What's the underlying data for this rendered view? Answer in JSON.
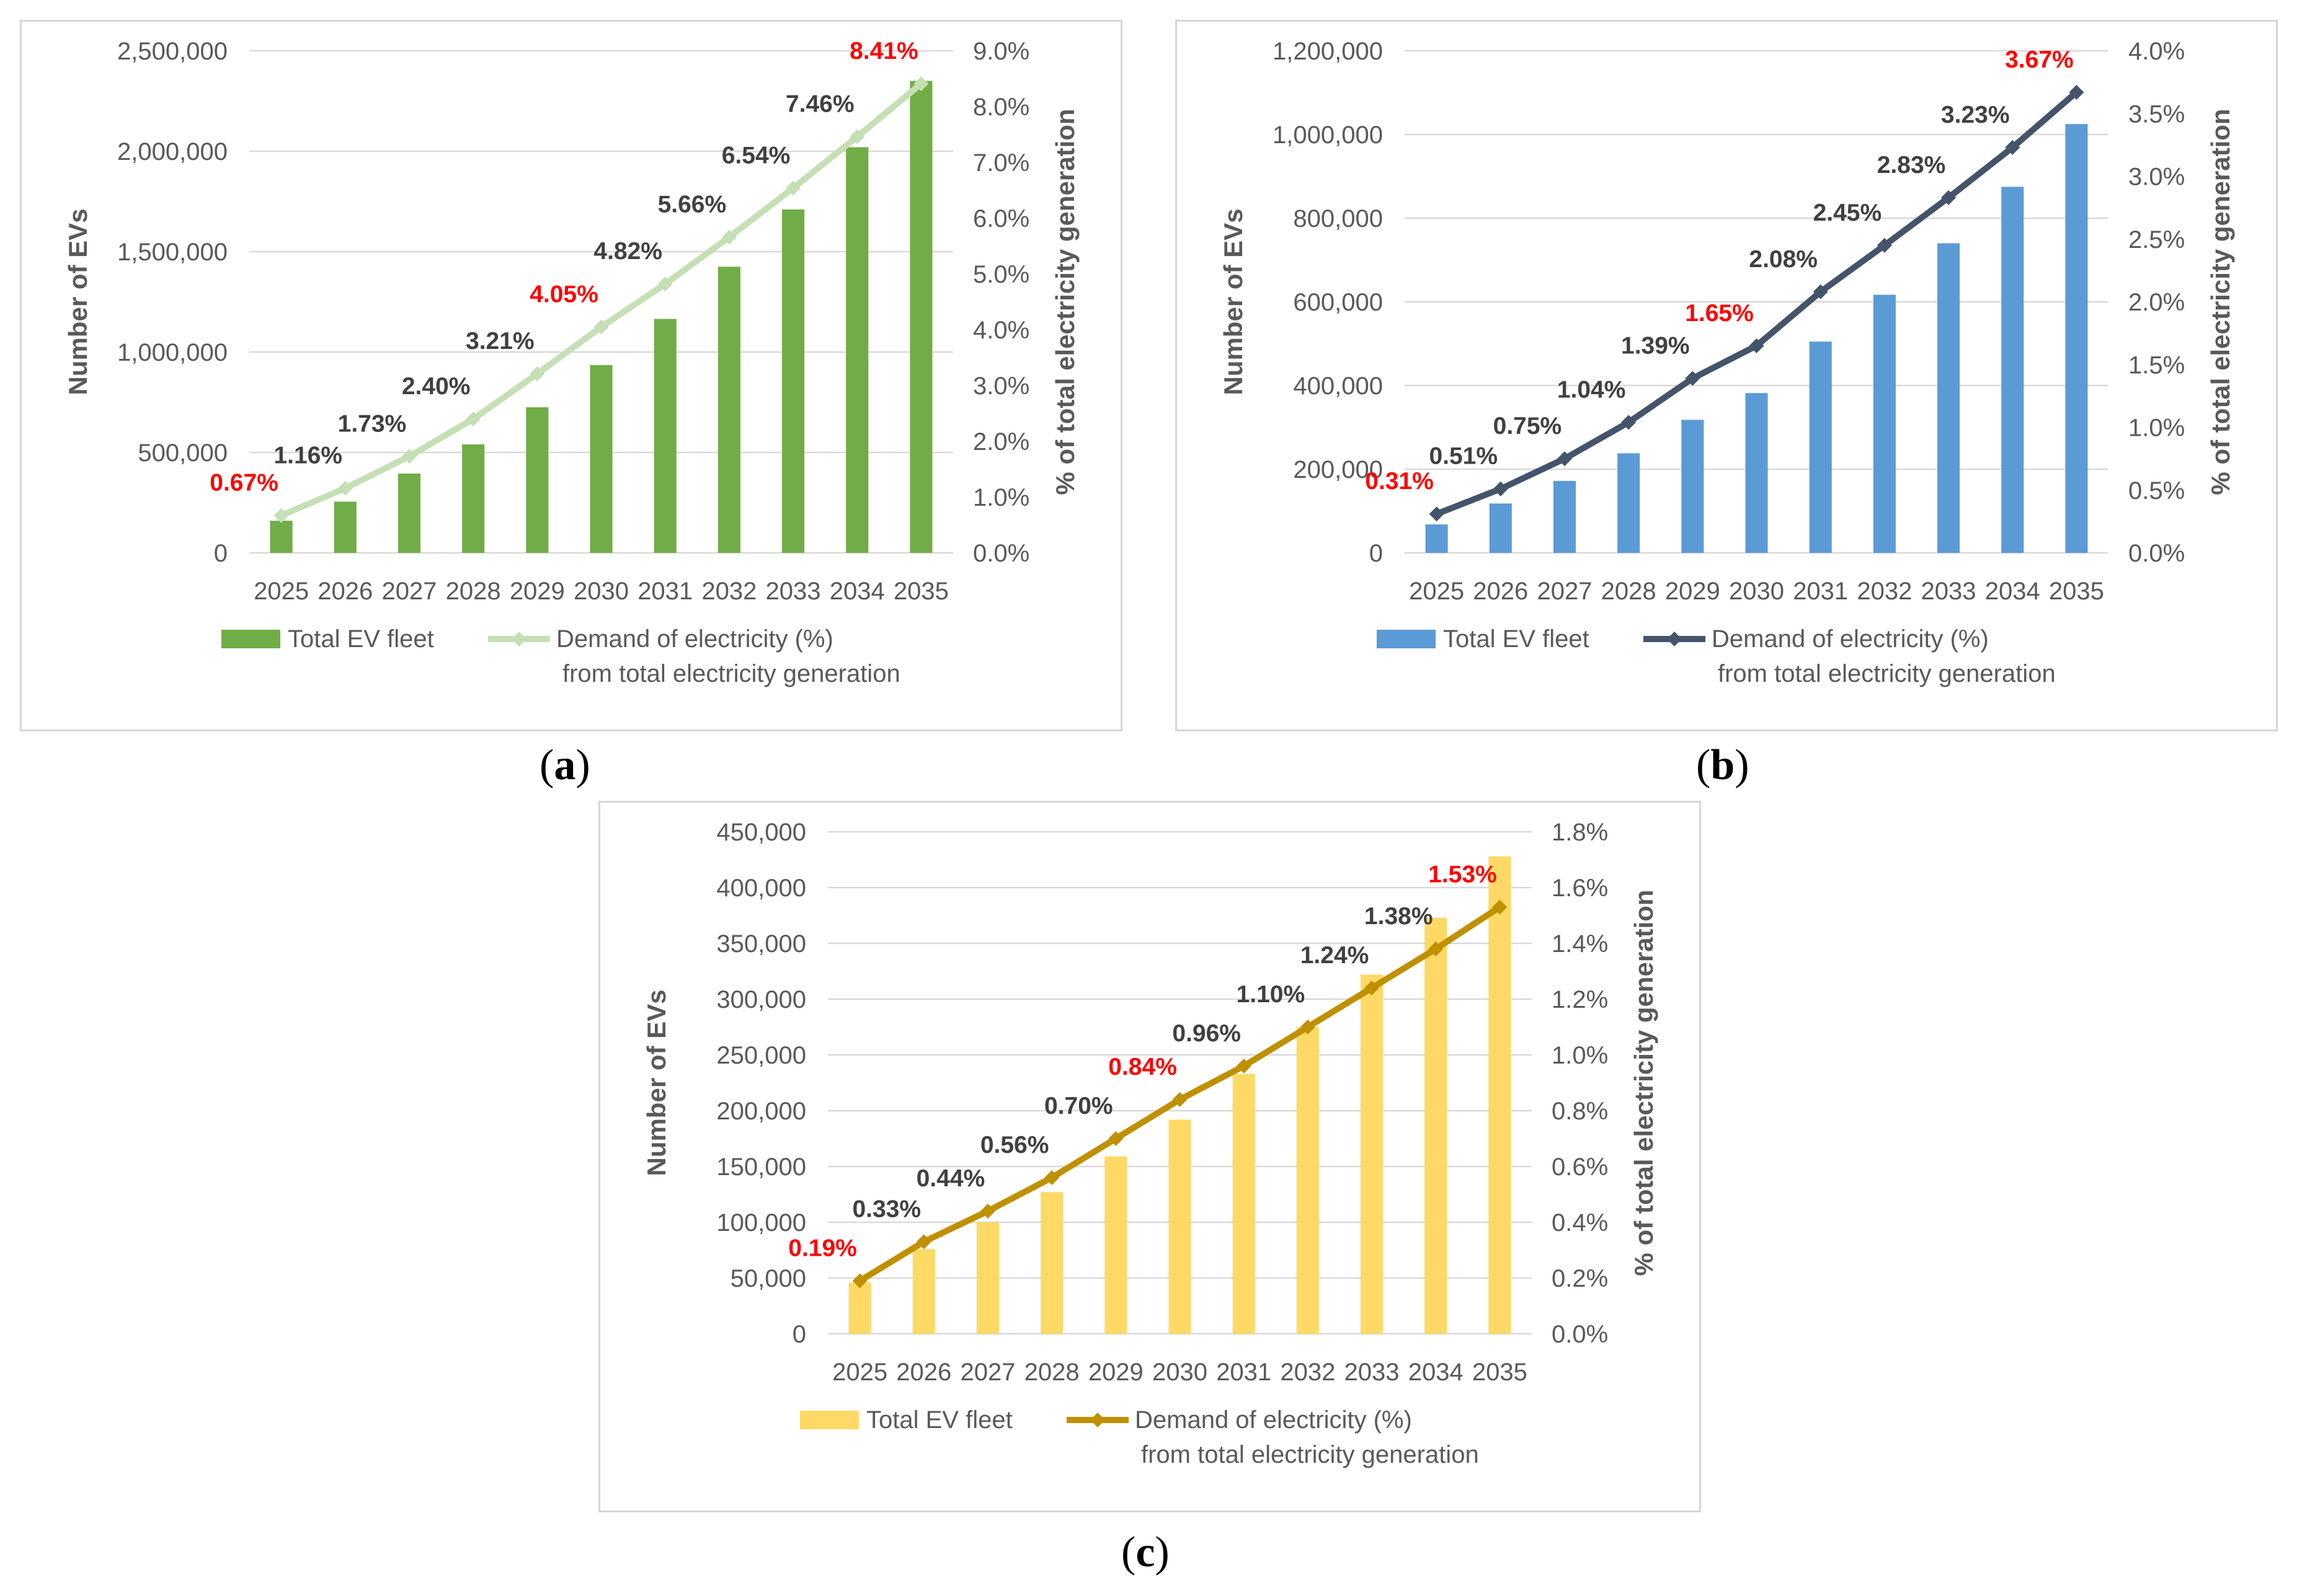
{
  "panels": [
    {
      "id": "a",
      "label": "a",
      "chart_data": {
        "type": "bar+line",
        "categories": [
          "2025",
          "2026",
          "2027",
          "2028",
          "2029",
          "2030",
          "2031",
          "2032",
          "2033",
          "2034",
          "2035"
        ],
        "series": [
          {
            "name": "Total EV fleet",
            "type": "bar",
            "axis": "left",
            "values": [
              160000,
              255000,
              395000,
              540000,
              725000,
              935000,
              1165000,
              1425000,
              1710000,
              2020000,
              2350000
            ]
          },
          {
            "name": "Demand of  electricity (%)",
            "name_line2": "from total electricity generation",
            "type": "line",
            "axis": "right",
            "values": [
              0.67,
              1.16,
              1.73,
              2.4,
              3.21,
              4.05,
              4.82,
              5.66,
              6.54,
              7.46,
              8.41
            ],
            "labels": [
              "0.67%",
              "1.16%",
              "1.73%",
              "2.40%",
              "3.21%",
              "4.05%",
              "4.82%",
              "5.66%",
              "6.54%",
              "7.46%",
              "8.41%"
            ],
            "highlight": [
              0,
              5,
              10
            ]
          }
        ],
        "ylabel": "Number of EVs",
        "y2label": "% of total electricity generation",
        "ylim": [
          0,
          2500000
        ],
        "y2lim": [
          0,
          9
        ],
        "yticks": [
          "0",
          "500,000",
          "1,000,000",
          "1,500,000",
          "2,000,000",
          "2,500,000"
        ],
        "y2ticks": [
          "0.0%",
          "1.0%",
          "2.0%",
          "3.0%",
          "4.0%",
          "5.0%",
          "6.0%",
          "7.0%",
          "8.0%",
          "9.0%"
        ],
        "colors": {
          "bar": "#70ad47",
          "line": "#c5e0b4",
          "marker": "#c5e0b4"
        },
        "legend_position": "bottom"
      }
    },
    {
      "id": "b",
      "label": "b",
      "chart_data": {
        "type": "bar+line",
        "categories": [
          "2025",
          "2026",
          "2027",
          "2028",
          "2029",
          "2030",
          "2031",
          "2032",
          "2033",
          "2034",
          "2035"
        ],
        "series": [
          {
            "name": "Total EV fleet",
            "type": "bar",
            "axis": "left",
            "values": [
              68000,
              118000,
              172000,
              238000,
              318000,
              382000,
              505000,
              617000,
              740000,
              875000,
              1025000
            ]
          },
          {
            "name": "Demand of  electricity (%)",
            "name_line2": "from total electricity generation",
            "type": "line",
            "axis": "right",
            "values": [
              0.31,
              0.51,
              0.75,
              1.04,
              1.39,
              1.65,
              2.08,
              2.45,
              2.83,
              3.23,
              3.67
            ],
            "labels": [
              "0.31%",
              "0.51%",
              "0.75%",
              "1.04%",
              "1.39%",
              "1.65%",
              "2.08%",
              "2.45%",
              "2.83%",
              "3.23%",
              "3.67%"
            ],
            "highlight": [
              0,
              5,
              10
            ]
          }
        ],
        "ylabel": "Number of EVs",
        "y2label": "% of total electricity generation",
        "ylim": [
          0,
          1200000
        ],
        "y2lim": [
          0,
          4
        ],
        "yticks": [
          "0",
          "200,000",
          "400,000",
          "600,000",
          "800,000",
          "1,000,000",
          "1,200,000"
        ],
        "y2ticks": [
          "0.0%",
          "0.5%",
          "1.0%",
          "1.5%",
          "2.0%",
          "2.5%",
          "3.0%",
          "3.5%",
          "4.0%"
        ],
        "colors": {
          "bar": "#5b9bd5",
          "line": "#44546a",
          "marker": "#44546a"
        },
        "legend_position": "bottom"
      }
    },
    {
      "id": "c",
      "label": "c",
      "chart_data": {
        "type": "bar+line",
        "categories": [
          "2025",
          "2026",
          "2027",
          "2028",
          "2029",
          "2030",
          "2031",
          "2032",
          "2033",
          "2034",
          "2035"
        ],
        "series": [
          {
            "name": "Total EV fleet",
            "type": "bar",
            "axis": "left",
            "values": [
              46000,
              76000,
              100000,
              127000,
              159000,
              192000,
              233000,
              275000,
              322000,
              373000,
              428000
            ]
          },
          {
            "name": "Demand of  electricity (%)",
            "name_line2": "from total electricity generation",
            "type": "line",
            "axis": "right",
            "values": [
              0.19,
              0.33,
              0.44,
              0.56,
              0.7,
              0.84,
              0.96,
              1.1,
              1.24,
              1.38,
              1.53
            ],
            "labels": [
              "0.19%",
              "0.33%",
              "0.44%",
              "0.56%",
              "0.70%",
              "0.84%",
              "0.96%",
              "1.10%",
              "1.24%",
              "1.38%",
              "1.53%"
            ],
            "highlight": [
              0,
              5,
              10
            ]
          }
        ],
        "ylabel": "Number of EVs",
        "y2label": "% of total electricity generation",
        "ylim": [
          0,
          450000
        ],
        "y2lim": [
          0,
          1.8
        ],
        "yticks": [
          "0",
          "50,000",
          "100,000",
          "150,000",
          "200,000",
          "250,000",
          "300,000",
          "350,000",
          "400,000",
          "450,000"
        ],
        "y2ticks": [
          "0.0%",
          "0.2%",
          "0.4%",
          "0.6%",
          "0.8%",
          "1.0%",
          "1.2%",
          "1.4%",
          "1.6%",
          "1.8%"
        ],
        "colors": {
          "bar": "#ffd966",
          "line": "#bf9000",
          "marker": "#bf9000"
        },
        "legend_position": "bottom"
      }
    }
  ]
}
